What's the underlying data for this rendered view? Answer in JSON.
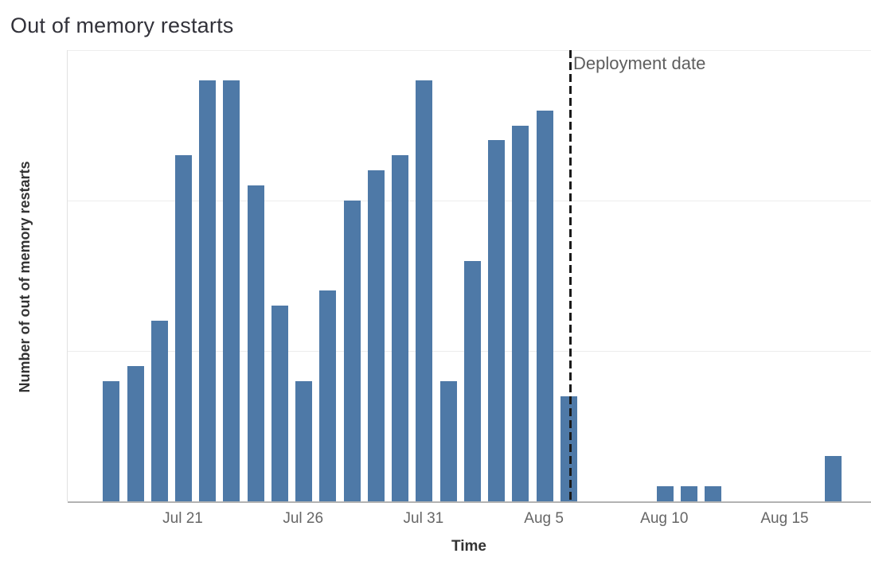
{
  "title": "Out of memory restarts",
  "colors": {
    "bar": "#4e79a7",
    "title_text": "#32323a",
    "axis_title_text": "#333333",
    "tick_label_text": "#666666",
    "annotation_text": "#5e5e5e",
    "gridline": "#ededed",
    "axis_line": "#b3b3b3",
    "deployment_line": "#1a1a1a",
    "background": "#ffffff"
  },
  "chart_data": {
    "type": "bar",
    "title": "Out of memory restarts",
    "xlabel": "Time",
    "ylabel": "Number of out of memory restarts",
    "ylim": [
      0,
      30
    ],
    "y_tick_labels": [],
    "gridline_values": [
      10,
      20,
      30
    ],
    "grid": "horizontal-faint",
    "legend": "none",
    "x_tick_labels": [
      "Jul 21",
      "Jul 26",
      "Jul 31",
      "Aug 5",
      "Aug 10",
      "Aug 15"
    ],
    "x_ticks": [
      {
        "label": "Jul 21",
        "day": 0
      },
      {
        "label": "Jul 26",
        "day": 5
      },
      {
        "label": "Jul 31",
        "day": 10
      },
      {
        "label": "Aug 5",
        "day": 15
      },
      {
        "label": "Aug 10",
        "day": 20
      },
      {
        "label": "Aug 15",
        "day": 25
      }
    ],
    "annotation": {
      "label": "Deployment date",
      "day": 16.07,
      "style": "black-dashed-vertical-line"
    },
    "points": [
      {
        "date": "Jul 18",
        "day": -3,
        "value": 8
      },
      {
        "date": "Jul 19",
        "day": -2,
        "value": 9
      },
      {
        "date": "Jul 20",
        "day": -1,
        "value": 12
      },
      {
        "date": "Jul 21",
        "day": 0,
        "value": 23
      },
      {
        "date": "Jul 22",
        "day": 1,
        "value": 28
      },
      {
        "date": "Jul 23",
        "day": 2,
        "value": 28
      },
      {
        "date": "Jul 24",
        "day": 3,
        "value": 21
      },
      {
        "date": "Jul 25",
        "day": 4,
        "value": 13
      },
      {
        "date": "Jul 26",
        "day": 5,
        "value": 8
      },
      {
        "date": "Jul 27",
        "day": 6,
        "value": 14
      },
      {
        "date": "Jul 28",
        "day": 7,
        "value": 20
      },
      {
        "date": "Jul 29",
        "day": 8,
        "value": 22
      },
      {
        "date": "Jul 30",
        "day": 9,
        "value": 23
      },
      {
        "date": "Jul 31",
        "day": 10,
        "value": 28
      },
      {
        "date": "Aug 1",
        "day": 11,
        "value": 8
      },
      {
        "date": "Aug 2",
        "day": 12,
        "value": 16
      },
      {
        "date": "Aug 3",
        "day": 13,
        "value": 24
      },
      {
        "date": "Aug 4",
        "day": 14,
        "value": 25
      },
      {
        "date": "Aug 5",
        "day": 15,
        "value": 26
      },
      {
        "date": "Aug 6",
        "day": 16,
        "value": 7
      },
      {
        "date": "Aug 10",
        "day": 20,
        "value": 1
      },
      {
        "date": "Aug 11",
        "day": 21,
        "value": 1
      },
      {
        "date": "Aug 12",
        "day": 22,
        "value": 1
      },
      {
        "date": "Aug 17",
        "day": 27,
        "value": 3
      }
    ]
  }
}
